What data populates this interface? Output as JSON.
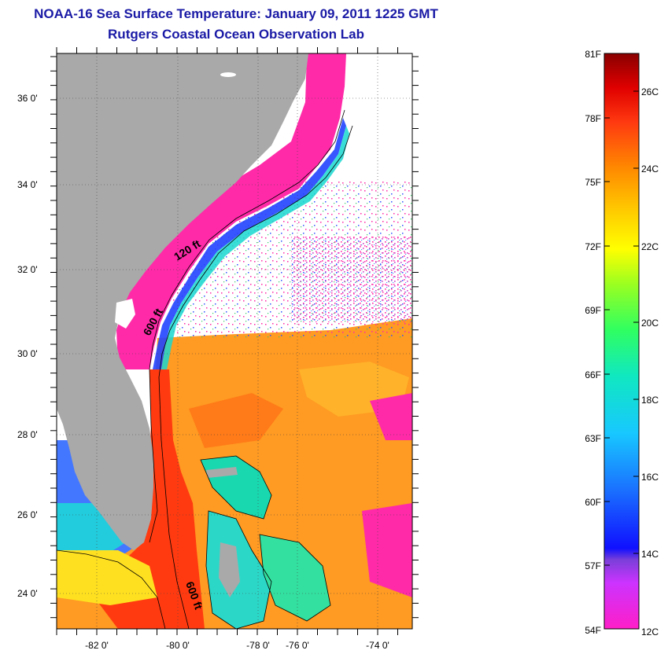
{
  "title": "NOAA-16 Sea Surface Temperature:  January 09, 2011 1225 GMT",
  "subtitle": "Rutgers Coastal Ocean Observation Lab",
  "map": {
    "lat_labels": [
      "36 0'",
      "34 0'",
      "32 0'",
      "30 0'",
      "28 0'",
      "26 0'",
      "24 0'"
    ],
    "lon_labels": [
      "-82 0'",
      "-80 0'",
      "-78 0'",
      "-76 0'",
      "-74 0'"
    ],
    "contour_labels": [
      "120 ft",
      "600 ft",
      "600 ft"
    ],
    "colors": {
      "land": "#a9a9a9",
      "cold": "#ff2aa8",
      "warm": "#ff3a10",
      "cloud": "#ffffff"
    }
  },
  "colorbar": {
    "fahrenheit_labels": [
      "81F",
      "78F",
      "75F",
      "72F",
      "69F",
      "66F",
      "63F",
      "60F",
      "57F",
      "54F"
    ],
    "celsius_labels": [
      "26C",
      "24C",
      "22C",
      "20C",
      "18C",
      "16C",
      "14C",
      "12C"
    ]
  }
}
